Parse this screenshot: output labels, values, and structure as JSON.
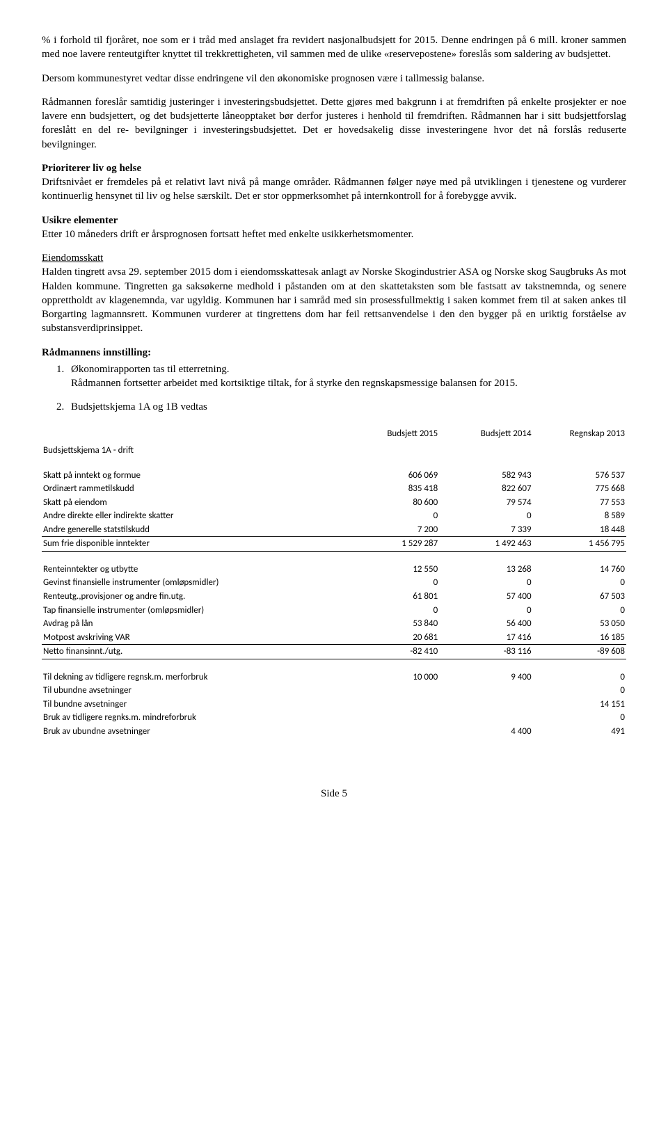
{
  "p1": "% i forhold til fjoråret, noe som er i tråd med anslaget fra revidert nasjonalbudsjett for 2015. Denne endringen på 6 mill. kroner sammen med noe lavere renteutgifter knyttet til trekkrettigheten, vil sammen med de ulike «reservepostene» foreslås som saldering av budsjettet.",
  "p2": "Dersom kommunestyret vedtar disse endringene vil den økonomiske prognosen være i tallmessig balanse.",
  "p3": "Rådmannen foreslår samtidig justeringer i investeringsbudsjettet. Dette gjøres med bakgrunn i at fremdriften på enkelte prosjekter er noe lavere enn budsjettert, og det budsjetterte låneopptaket bør derfor justeres i henhold til fremdriften. Rådmannen har i sitt budsjettforslag foreslått en del re- bevilgninger i investeringsbudsjettet. Det er hovedsakelig disse investeringene hvor det nå forslås reduserte bevilgninger.",
  "s1_head": "Prioriterer liv og helse",
  "s1_body": "Driftsnivået er fremdeles på et relativt lavt nivå på mange områder. Rådmannen følger nøye med på utviklingen i tjenestene og vurderer kontinuerlig hensynet til liv og helse særskilt. Det er stor oppmerksomhet på internkontroll for å forebygge avvik.",
  "s2_head": "Usikre elementer",
  "s2_body": "Etter 10 måneders drift er årsprognosen fortsatt heftet med enkelte usikkerhetsmomenter.",
  "s3_head": "Eiendomsskatt",
  "s3_body": "Halden tingrett avsa 29. september 2015 dom i eiendomsskattesak anlagt av Norske Skogindustrier ASA og Norske skog Saugbruks As mot Halden kommune. Tingretten ga saksøkerne medhold i påstanden om at den skattetaksten som ble fastsatt av takstnemnda, og senere opprettholdt av klagenemnda, var ugyldig. Kommunen har i samråd med sin prosessfullmektig i saken kommet frem til at saken ankes til Borgarting lagmannsrett. Kommunen vurderer at tingrettens dom har feil rettsanvendelse i den den bygger på en uriktig forståelse av substansverdiprinsippet.",
  "innstilling_head": "Rådmannens innstilling:",
  "li1a": "Økonomirapporten tas til etterretning.",
  "li1b": "Rådmannen fortsetter arbeidet med kortsiktige tiltak, for å styrke den regnskapsmessige balansen for 2015.",
  "li2": "Budsjettskjema 1A og 1B vedtas",
  "table_title": "Budsjettskjema 1A - drift",
  "cols": {
    "c1": "Budsjett 2015",
    "c2": "Budsjett 2014",
    "c3": "Regnskap 2013"
  },
  "rows": {
    "r1": {
      "label": "Skatt på inntekt og formue",
      "a": "606 069",
      "b": "582 943",
      "c": "576 537"
    },
    "r2": {
      "label": "Ordinært rammetilskudd",
      "a": "835 418",
      "b": "822 607",
      "c": "775 668"
    },
    "r3": {
      "label": "Skatt på eiendom",
      "a": "80 600",
      "b": "79 574",
      "c": "77 553"
    },
    "r4": {
      "label": "Andre direkte eller indirekte skatter",
      "a": "0",
      "b": "0",
      "c": "8 589"
    },
    "r5": {
      "label": "Andre generelle statstilskudd",
      "a": "7 200",
      "b": "7 339",
      "c": "18 448"
    },
    "r6": {
      "label": "Sum frie disponible inntekter",
      "a": "1 529 287",
      "b": "1 492 463",
      "c": "1 456 795"
    },
    "r7": {
      "label": "Renteinntekter og utbytte",
      "a": "12 550",
      "b": "13 268",
      "c": "14 760"
    },
    "r8": {
      "label": "Gevinst finansielle instrumenter (omløpsmidler)",
      "a": "0",
      "b": "0",
      "c": "0"
    },
    "r9": {
      "label": "Renteutg.,provisjoner og andre fin.utg.",
      "a": "61 801",
      "b": "57 400",
      "c": "67 503"
    },
    "r10": {
      "label": "Tap finansielle instrumenter (omløpsmidler)",
      "a": "0",
      "b": "0",
      "c": "0"
    },
    "r11": {
      "label": "Avdrag på lån",
      "a": "53 840",
      "b": "56 400",
      "c": "53 050"
    },
    "r12": {
      "label": "Motpost avskriving VAR",
      "a": "20 681",
      "b": "17 416",
      "c": "16 185"
    },
    "r13": {
      "label": "Netto finansinnt./utg.",
      "a": "-82 410",
      "b": "-83 116",
      "c": "-89 608"
    },
    "r14": {
      "label": "Til dekning av tidligere regnsk.m. merforbruk",
      "a": "10 000",
      "b": "9 400",
      "c": "0"
    },
    "r15": {
      "label": "Til ubundne avsetninger",
      "a": "",
      "b": "",
      "c": "0"
    },
    "r16": {
      "label": "Til bundne avsetninger",
      "a": "",
      "b": "",
      "c": "14 151"
    },
    "r17": {
      "label": "Bruk av tidligere regnks.m. mindreforbruk",
      "a": "",
      "b": "",
      "c": "0"
    },
    "r18": {
      "label": "Bruk av ubundne avsetninger",
      "a": "",
      "b": "4 400",
      "c": "491"
    }
  },
  "footer": "Side 5"
}
